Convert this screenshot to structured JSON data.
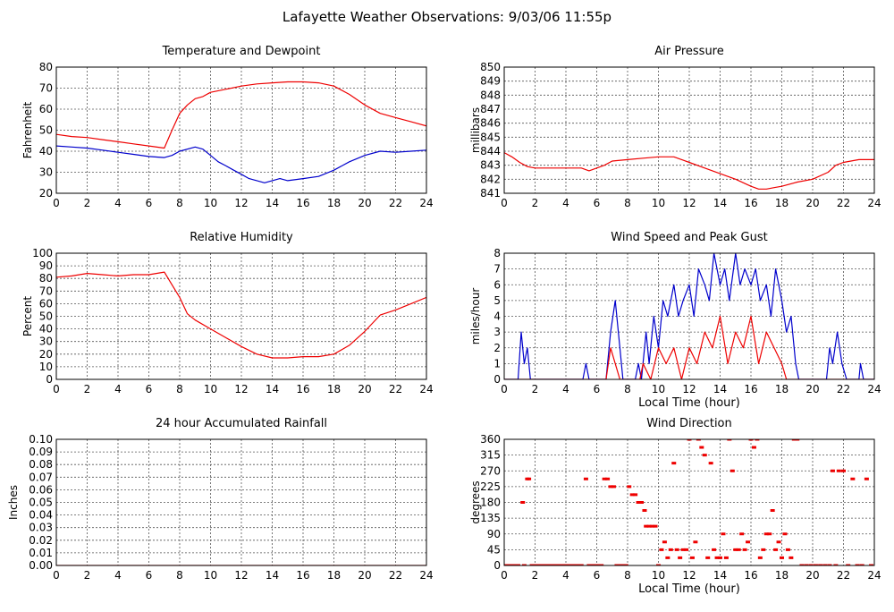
{
  "page": {
    "title": "Lafayette Weather Observations: 9/03/06 11:55p"
  },
  "colors": {
    "red": "#ee0000",
    "blue": "#0000cc",
    "grid": "#000000",
    "text": "#000000"
  },
  "chart_data": [
    {
      "id": "temp",
      "type": "line",
      "title": "Temperature and Dewpoint",
      "xlabel": "",
      "ylabel": "Fahrenheit",
      "xlim": [
        0,
        24
      ],
      "ylim": [
        20,
        80
      ],
      "xticks": [
        0,
        2,
        4,
        6,
        8,
        10,
        12,
        14,
        16,
        18,
        20,
        22,
        24
      ],
      "yticks": [
        20,
        30,
        40,
        50,
        60,
        70,
        80
      ],
      "grid": true,
      "series": [
        {
          "color": "red",
          "x": [
            0,
            1,
            2,
            3,
            4,
            5,
            6,
            7,
            7.5,
            8,
            8.5,
            9,
            9.5,
            10,
            11,
            12,
            13,
            14,
            15,
            16,
            17,
            18,
            19,
            20,
            21,
            22,
            23,
            24
          ],
          "y": [
            48,
            47,
            46.5,
            45.5,
            44.5,
            43.5,
            42.5,
            41.5,
            50,
            58,
            62,
            65,
            66,
            68,
            69.5,
            71,
            72,
            72.5,
            73,
            73,
            72.5,
            71,
            67,
            62,
            58,
            56,
            54,
            52
          ]
        },
        {
          "color": "blue",
          "x": [
            0,
            1,
            2,
            3,
            4,
            5,
            6,
            7,
            7.5,
            8,
            9,
            9.5,
            10,
            10.5,
            11,
            11.5,
            12,
            12.5,
            13,
            13.5,
            14,
            14.5,
            15,
            16,
            17,
            18,
            19,
            20,
            21,
            22,
            23,
            24
          ],
          "y": [
            42.5,
            42,
            41.5,
            40.5,
            39.5,
            38.5,
            37.5,
            37,
            38,
            40,
            42,
            41,
            38,
            35,
            33,
            31,
            29,
            27,
            26,
            25,
            26,
            27,
            26,
            27,
            28,
            31,
            35,
            38,
            40,
            39.5,
            40,
            40.5
          ]
        }
      ]
    },
    {
      "id": "pressure",
      "type": "line",
      "title": "Air Pressure",
      "xlabel": "",
      "ylabel": "millibars",
      "xlim": [
        0,
        24
      ],
      "ylim": [
        841,
        850
      ],
      "xticks": [
        0,
        2,
        4,
        6,
        8,
        10,
        12,
        14,
        16,
        18,
        20,
        22,
        24
      ],
      "yticks": [
        841,
        842,
        843,
        844,
        845,
        846,
        847,
        848,
        849,
        850
      ],
      "grid": true,
      "series": [
        {
          "color": "red",
          "x": [
            0,
            0.5,
            1,
            1.5,
            2,
            3,
            4,
            5,
            5.5,
            6,
            6.5,
            7,
            8,
            9,
            10,
            11,
            12,
            13,
            14,
            15,
            16,
            16.5,
            17,
            17.5,
            18,
            19,
            20,
            21,
            21.5,
            22,
            23,
            24
          ],
          "y": [
            843.9,
            843.6,
            843.2,
            842.9,
            842.8,
            842.8,
            842.8,
            842.8,
            842.6,
            842.8,
            843.0,
            843.3,
            843.4,
            843.5,
            843.6,
            843.6,
            843.2,
            842.8,
            842.4,
            842.0,
            841.5,
            841.3,
            841.3,
            841.4,
            841.5,
            841.8,
            842.0,
            842.5,
            843.0,
            843.2,
            843.4,
            843.4
          ]
        }
      ]
    },
    {
      "id": "humidity",
      "type": "line",
      "title": "Relative Humidity",
      "xlabel": "",
      "ylabel": "Percent",
      "xlim": [
        0,
        24
      ],
      "ylim": [
        0,
        100
      ],
      "xticks": [
        0,
        2,
        4,
        6,
        8,
        10,
        12,
        14,
        16,
        18,
        20,
        22,
        24
      ],
      "yticks": [
        0,
        10,
        20,
        30,
        40,
        50,
        60,
        70,
        80,
        90,
        100
      ],
      "grid": true,
      "series": [
        {
          "color": "red",
          "x": [
            0,
            1,
            2,
            3,
            4,
            5,
            6,
            7,
            7.5,
            8,
            8.5,
            9,
            10,
            11,
            12,
            13,
            14,
            15,
            16,
            17,
            18,
            19,
            20,
            21,
            22,
            23,
            24
          ],
          "y": [
            81,
            82,
            84,
            83,
            82,
            83,
            83,
            85,
            75,
            65,
            52,
            47,
            40,
            33,
            26,
            20,
            17,
            17,
            18,
            18,
            20,
            27,
            38,
            51,
            55,
            60,
            65
          ]
        }
      ]
    },
    {
      "id": "wind",
      "type": "line",
      "title": "Wind Speed and Peak Gust",
      "xlabel": "Local Time (hour)",
      "ylabel": "miles/hour",
      "xlim": [
        0,
        24
      ],
      "ylim": [
        0,
        8
      ],
      "xticks": [
        0,
        2,
        4,
        6,
        8,
        10,
        12,
        14,
        16,
        18,
        20,
        22,
        24
      ],
      "yticks": [
        0,
        1,
        2,
        3,
        4,
        5,
        6,
        7,
        8
      ],
      "grid": true,
      "series": [
        {
          "color": "blue",
          "x": [
            0,
            0.9,
            1.1,
            1.3,
            1.5,
            1.7,
            5.1,
            5.3,
            5.5,
            6.6,
            6.9,
            7.2,
            7.5,
            7.7,
            8.5,
            8.7,
            8.9,
            9.2,
            9.4,
            9.7,
            10.0,
            10.3,
            10.6,
            11.0,
            11.3,
            11.6,
            12.0,
            12.3,
            12.6,
            13.0,
            13.3,
            13.6,
            14.0,
            14.3,
            14.6,
            15.0,
            15.3,
            15.6,
            16.0,
            16.3,
            16.6,
            17.0,
            17.3,
            17.6,
            18.0,
            18.3,
            18.6,
            18.9,
            19.1,
            20.9,
            21.1,
            21.3,
            21.6,
            21.9,
            22.2,
            23.0,
            23.1,
            23.3,
            24
          ],
          "y": [
            0,
            0,
            3,
            1,
            2,
            0,
            0,
            1,
            0,
            0,
            3,
            5,
            2,
            0,
            0,
            1,
            0,
            3,
            1,
            4,
            2,
            5,
            4,
            6,
            4,
            5,
            6,
            4,
            7,
            6,
            5,
            8,
            6,
            7,
            5,
            8,
            6,
            7,
            6,
            7,
            5,
            6,
            4,
            7,
            5,
            3,
            4,
            1,
            0,
            0,
            2,
            1,
            3,
            1,
            0,
            0,
            1,
            0,
            0
          ]
        },
        {
          "color": "red",
          "x": [
            0,
            6.6,
            6.9,
            7.2,
            7.5,
            8.8,
            9.0,
            9.5,
            10.0,
            10.5,
            11.0,
            11.5,
            12.0,
            12.5,
            13.0,
            13.5,
            14.0,
            14.5,
            15.0,
            15.5,
            16.0,
            16.5,
            17.0,
            17.5,
            18.0,
            18.3,
            18.6,
            24
          ],
          "y": [
            0,
            0,
            2,
            1,
            0,
            0,
            1,
            0,
            2,
            1,
            2,
            0,
            2,
            1,
            3,
            2,
            4,
            1,
            3,
            2,
            4,
            1,
            3,
            2,
            1,
            0,
            0,
            0
          ]
        }
      ]
    },
    {
      "id": "rain",
      "type": "line",
      "title": "24 hour Accumulated Rainfall",
      "xlabel": "",
      "ylabel": "Inches",
      "xlim": [
        0,
        24
      ],
      "ylim": [
        0,
        0.1
      ],
      "xticks": [
        0,
        2,
        4,
        6,
        8,
        10,
        12,
        14,
        16,
        18,
        20,
        22,
        24
      ],
      "yticks": [
        "0.00",
        "0.01",
        "0.02",
        "0.03",
        "0.04",
        "0.05",
        "0.06",
        "0.07",
        "0.08",
        "0.09",
        "0.10"
      ],
      "grid": true,
      "series": [
        {
          "color": "red",
          "x": [
            0,
            24
          ],
          "y": [
            0,
            0
          ]
        }
      ]
    },
    {
      "id": "direction",
      "type": "scatter",
      "title": "Wind Direction",
      "xlabel": "Local Time (hour)",
      "ylabel": "degrees",
      "xlim": [
        0,
        24
      ],
      "ylim": [
        0,
        360
      ],
      "xticks": [
        0,
        2,
        4,
        6,
        8,
        10,
        12,
        14,
        16,
        18,
        20,
        22,
        24
      ],
      "yticks": [
        0,
        45,
        90,
        135,
        180,
        225,
        270,
        315,
        360
      ],
      "grid": true,
      "series": [
        {
          "color": "red",
          "x": [
            0.1,
            0.3,
            0.5,
            0.7,
            0.9,
            1.2,
            1.3,
            1.5,
            1.6,
            1.8,
            2.0,
            2.2,
            2.4,
            2.6,
            2.8,
            3.0,
            3.2,
            3.4,
            3.6,
            3.8,
            4.0,
            4.2,
            4.4,
            4.6,
            4.8,
            5.0,
            5.3,
            5.5,
            5.7,
            5.9,
            6.1,
            6.3,
            6.5,
            6.7,
            6.9,
            7.1,
            7.3,
            7.5,
            7.7,
            7.9,
            8.1,
            8.3,
            8.5,
            8.7,
            8.9,
            9.1,
            9.2,
            9.4,
            9.6,
            9.8,
            10.0,
            10.2,
            10.4,
            10.6,
            10.8,
            11.0,
            11.2,
            11.4,
            11.6,
            11.8,
            12.0,
            12.2,
            12.4,
            12.6,
            12.8,
            13.0,
            13.2,
            13.4,
            13.6,
            13.8,
            14.0,
            14.2,
            14.4,
            14.6,
            14.8,
            15.0,
            15.2,
            15.4,
            15.6,
            15.8,
            16.0,
            16.2,
            16.4,
            16.6,
            16.8,
            17.0,
            17.2,
            17.4,
            17.6,
            17.8,
            18.0,
            18.2,
            18.4,
            18.6,
            18.8,
            19.0,
            19.3,
            19.6,
            19.9,
            20.2,
            20.5,
            20.8,
            21.1,
            21.3,
            21.5,
            21.7,
            22.0,
            22.3,
            22.6,
            22.9,
            23.2,
            23.5,
            23.8
          ],
          "y": [
            0,
            0,
            0,
            0,
            0,
            180,
            0,
            247,
            247,
            0,
            0,
            0,
            0,
            0,
            0,
            0,
            0,
            0,
            0,
            0,
            0,
            0,
            0,
            0,
            0,
            0,
            247,
            0,
            0,
            0,
            0,
            0,
            247,
            247,
            225,
            225,
            0,
            0,
            0,
            0,
            225,
            202,
            202,
            180,
            180,
            157,
            112,
            112,
            112,
            112,
            0,
            45,
            67,
            22,
            45,
            292,
            45,
            22,
            45,
            45,
            360,
            22,
            67,
            360,
            337,
            315,
            22,
            292,
            45,
            22,
            22,
            90,
            22,
            360,
            270,
            45,
            45,
            90,
            45,
            67,
            360,
            337,
            360,
            22,
            45,
            90,
            90,
            157,
            45,
            67,
            22,
            90,
            45,
            22,
            360,
            360,
            0,
            0,
            0,
            0,
            0,
            0,
            0,
            270,
            0,
            270,
            270,
            0,
            247,
            0,
            0,
            247,
            0
          ]
        }
      ]
    }
  ]
}
